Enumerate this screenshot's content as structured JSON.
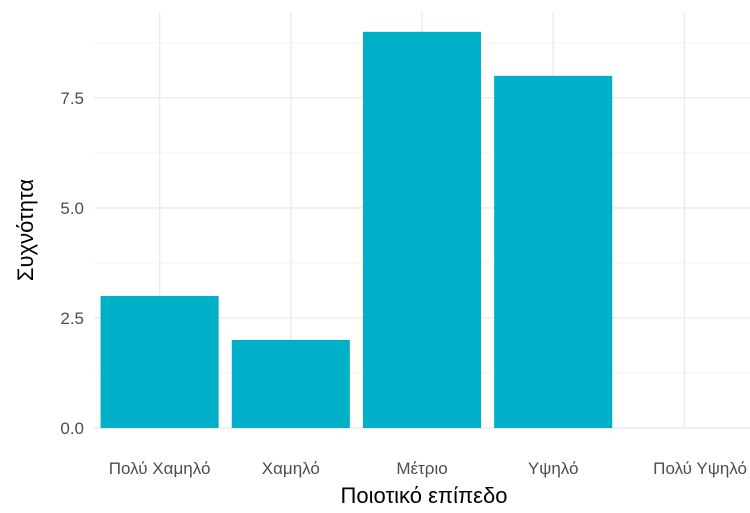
{
  "chart_data": {
    "type": "bar",
    "categories": [
      "Πολύ Χαμηλό",
      "Χαμηλό",
      "Μέτριο",
      "Υψηλό",
      "Πολύ Υψηλό"
    ],
    "values": [
      3,
      2,
      9,
      8,
      0
    ],
    "xlabel": "Ποιοτικό επίπεδο",
    "ylabel": "Συχνότητα",
    "ylim": [
      0,
      9.45
    ],
    "yticks": [
      0.0,
      2.5,
      5.0,
      7.5
    ],
    "ytick_labels": [
      "0.0",
      "2.5",
      "5.0",
      "7.5"
    ],
    "grid": true,
    "bar_color": "#00B0C8"
  }
}
